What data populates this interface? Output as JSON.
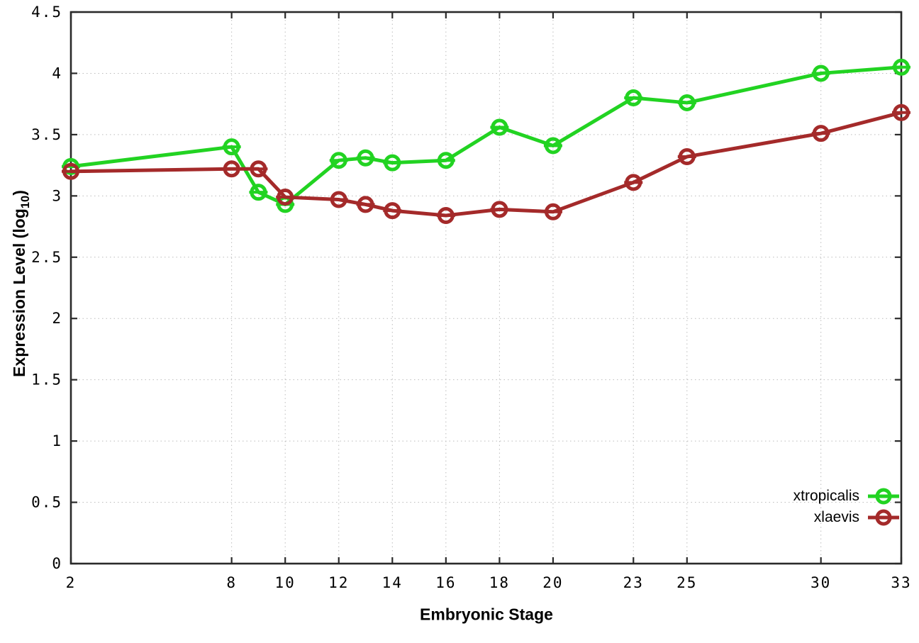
{
  "chart_data": {
    "type": "line",
    "title": "",
    "xlabel": "Embryonic Stage",
    "ylabel": "Expression Level (log10)",
    "ylabel_parts": {
      "main": "Expression Level (log",
      "sub": "10",
      "close": ")"
    },
    "xlim": [
      2,
      33
    ],
    "ylim": [
      0,
      4.5
    ],
    "grid": true,
    "legend_position": "bottom-right",
    "x_ticks": [
      2,
      8,
      10,
      12,
      14,
      16,
      18,
      20,
      23,
      25,
      30,
      33
    ],
    "x_tick_labels": [
      "2",
      "8",
      "10",
      "12",
      "14",
      "16",
      "18",
      "20",
      "23",
      "25",
      "30",
      "33"
    ],
    "y_ticks": [
      0,
      0.5,
      1,
      1.5,
      2,
      2.5,
      3,
      3.5,
      4,
      4.5
    ],
    "y_tick_labels": [
      "0",
      "0.5",
      "1",
      "1.5",
      "2",
      "2.5",
      "3",
      "3.5",
      "4",
      "4.5"
    ],
    "x": [
      2,
      8,
      9,
      10,
      12,
      13,
      14,
      16,
      18,
      20,
      23,
      25,
      30,
      33
    ],
    "series": [
      {
        "name": "xtropicalis",
        "color": "#22d322",
        "marker": "open-circle-with-errorbar-cap",
        "values": [
          3.24,
          3.4,
          3.03,
          2.93,
          3.29,
          3.31,
          3.27,
          3.29,
          3.56,
          3.41,
          3.8,
          3.76,
          4.0,
          4.05
        ]
      },
      {
        "name": "xlaevis",
        "color": "#a42a2a",
        "marker": "open-circle-with-errorbar-cap",
        "values": [
          3.2,
          3.22,
          3.22,
          2.99,
          2.97,
          2.93,
          2.88,
          2.84,
          2.89,
          2.87,
          3.11,
          3.32,
          3.51,
          3.68
        ]
      }
    ],
    "colors": {
      "grid": "#bcbcbc",
      "axis": "#2a2a2a",
      "text": "#000000",
      "background": "#ffffff"
    }
  }
}
